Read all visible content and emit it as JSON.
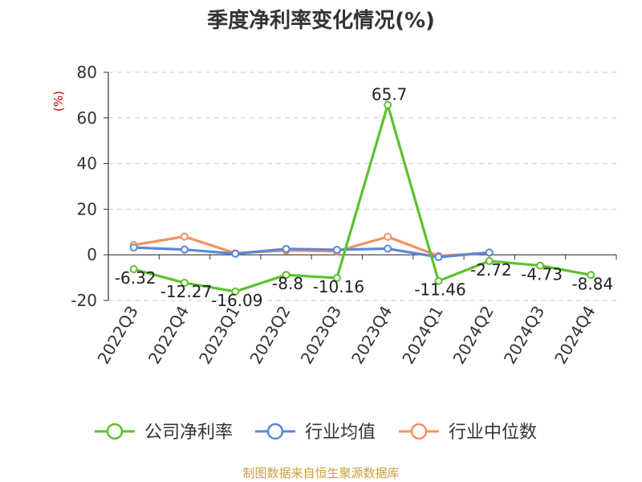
{
  "chart_data": {
    "type": "line",
    "title": "季度净利率变化情况(%)",
    "ylabel": "(%)",
    "ylim": [
      -20,
      80
    ],
    "yticks": [
      -20,
      0,
      20,
      40,
      60,
      80
    ],
    "categories": [
      "2022Q3",
      "2022Q4",
      "2023Q1",
      "2023Q2",
      "2023Q3",
      "2023Q4",
      "2024Q1",
      "2024Q2",
      "2024Q3",
      "2024Q4"
    ],
    "series": [
      {
        "name": "公司净利率",
        "color": "#5cc12e",
        "values": [
          -6.32,
          -12.27,
          -16.09,
          -8.8,
          -10.16,
          65.7,
          -11.46,
          -2.72,
          -4.73,
          -8.84
        ],
        "labels": [
          "-6.32",
          "-12.27",
          "-16.09",
          "-8.8",
          "-10.16",
          "65.7",
          "-11.46",
          "-2.72",
          "-4.73",
          "-8.84"
        ]
      },
      {
        "name": "行业均值",
        "color": "#5b87d8",
        "values": [
          3.2,
          2.3,
          0.5,
          2.6,
          2.2,
          2.7,
          -1.0,
          1.0,
          null,
          null
        ]
      },
      {
        "name": "行业中位数",
        "color": "#f59060",
        "values": [
          4.3,
          8.0,
          0.7,
          1.9,
          1.6,
          7.9,
          -0.5,
          0.9,
          null,
          null
        ]
      }
    ],
    "grid": true,
    "legend": "bottom",
    "source": "制图数据来自恒生聚源数据库"
  }
}
